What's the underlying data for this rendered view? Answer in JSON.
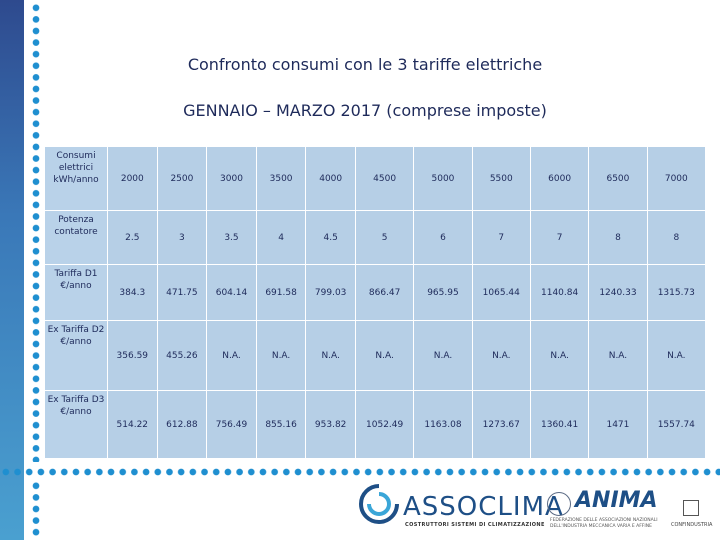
{
  "title_line1": "Confronto consumi con le 3 tariffe elettriche",
  "title_line2": "GENNAIO – MARZO 2017 (comprese imposte)",
  "rows": [
    {
      "header": "Consumi elettrici kWh/anno",
      "values": [
        "2000",
        "2500",
        "3000",
        "3500",
        "4000",
        "4500",
        "5000",
        "5500",
        "6000",
        "6500",
        "7000"
      ]
    },
    {
      "header": "Potenza contatore",
      "values": [
        "2.5",
        "3",
        "3.5",
        "4",
        "4.5",
        "5",
        "6",
        "7",
        "7",
        "8",
        "8"
      ]
    },
    {
      "header": "Tariffa D1 €/anno",
      "values": [
        "384.3",
        "471.75",
        "604.14",
        "691.58",
        "799.03",
        "866.47",
        "965.95",
        "1065.44",
        "1140.84",
        "1240.33",
        "1315.73"
      ]
    },
    {
      "header": "Ex Tariffa D2 €/anno",
      "values": [
        "356.59",
        "455.26",
        "N.A.",
        "N.A.",
        "N.A.",
        "N.A.",
        "N.A.",
        "N.A.",
        "N.A.",
        "N.A.",
        "N.A."
      ]
    },
    {
      "header": "Ex Tariffa D3 €/anno",
      "values": [
        "514.22",
        "612.88",
        "756.49",
        "855.16",
        "953.82",
        "1052.49",
        "1163.08",
        "1273.67",
        "1360.41",
        "1471",
        "1557.74"
      ]
    }
  ],
  "logos": {
    "assoclima": "ASSOCLIMA",
    "assoclima_sub": "COSTRUTTORI SISTEMI DI CLIMATIZZAZIONE",
    "anima": "ANIMA",
    "anima_sub": "FEDERAZIONE DELLE ASSOCIAZIONI NAZIONALI DELL'INDUSTRIA MECCANICA VARIA E AFFINE",
    "confindustria": "CONFINDUSTRIA"
  },
  "colors": {
    "table_bg": "#b6cfe6",
    "title": "#1e2a5a",
    "accent": "#1f8fd0"
  }
}
